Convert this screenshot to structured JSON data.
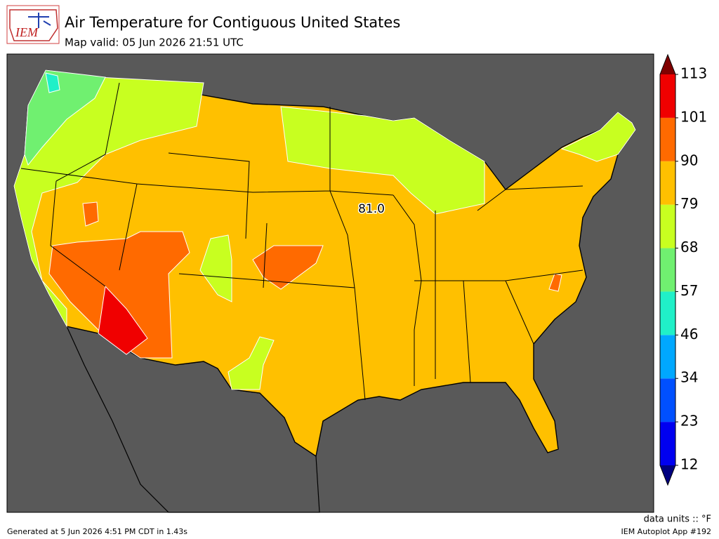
{
  "header": {
    "title": "Air Temperature for Contiguous United States",
    "subtitle": "Map valid: 05 Jun 2026 21:51 UTC"
  },
  "logo": {
    "text": "IEM"
  },
  "map": {
    "label": "81.0"
  },
  "colorbar": {
    "ticks": [
      12,
      23,
      34,
      46,
      57,
      68,
      79,
      90,
      101,
      113
    ],
    "colors": [
      "#0000f0",
      "#0050ff",
      "#00a8ff",
      "#20f0c8",
      "#70f070",
      "#c8ff20",
      "#ffc000",
      "#ff6a00",
      "#f00000"
    ],
    "under_color": "#000080",
    "over_color": "#800000",
    "units": "data units :: °F"
  },
  "footer": {
    "generated": "Generated at 5 Jun 2026 4:51 PM CDT in 1.43s",
    "app": "IEM Autoplot App #192"
  }
}
